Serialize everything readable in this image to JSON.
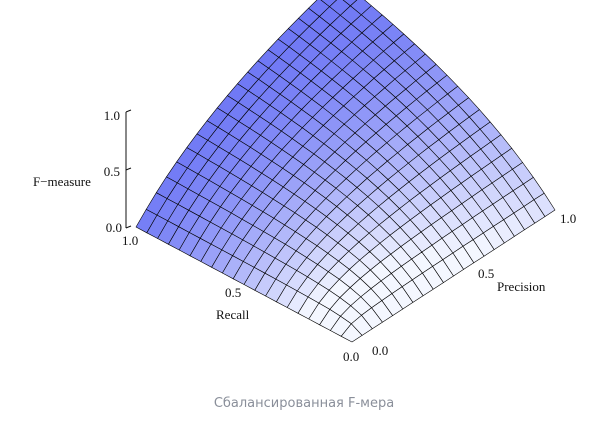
{
  "caption": "Сбалансированная F-мера",
  "chart_data": {
    "type": "surface",
    "function": "F = 2PR/(P+R)",
    "xlabel": "Recall",
    "ylabel": "Precision",
    "zlabel": "F−measure",
    "x_ticks": [
      "1.0",
      "0.5",
      "0.0"
    ],
    "y_ticks": [
      "0.0",
      "0.5",
      "1.0"
    ],
    "z_ticks": [
      "0.0",
      "0.5",
      "1.0"
    ],
    "xlim": [
      0,
      1
    ],
    "ylim": [
      0,
      1
    ],
    "zlim": [
      0,
      1
    ],
    "grid_divisions": 20,
    "colors": {
      "low": "#6e77f5",
      "high": "#f4f7ff",
      "mesh": "#000000"
    },
    "samples": [
      {
        "recall": 0,
        "precision": 0,
        "f": 0
      },
      {
        "recall": 0.5,
        "precision": 0.5,
        "f": 0.5
      },
      {
        "recall": 1,
        "precision": 1,
        "f": 1
      },
      {
        "recall": 1,
        "precision": 0,
        "f": 0
      },
      {
        "recall": 0,
        "precision": 1,
        "f": 0
      }
    ]
  }
}
